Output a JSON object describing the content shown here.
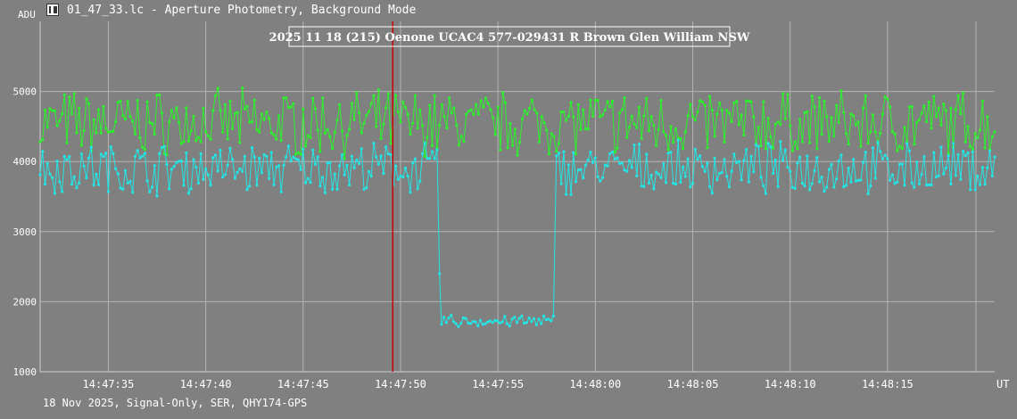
{
  "window": {
    "title": "01_47_33.lc - Aperture Photometry, Background Mode",
    "footer": "18 Nov 2025, Signal-Only, SER, QHY174-GPS"
  },
  "colors": {
    "background": "#808080",
    "grid": "#b4b4b4",
    "target_series": "#22e6e6",
    "comparison_series": "#2bf22b",
    "marker": "#cc0000"
  },
  "chart_data": {
    "type": "line",
    "title": "2025 11 18  (215) Oenone UCAC4 577-029431 R Brown Glen William NSW",
    "ylabel": "ADU",
    "xlabel": "UT",
    "ylim": [
      1000,
      6000
    ],
    "xlim_seconds": [
      31.5,
      80.5
    ],
    "y_ticks": [
      1000,
      2000,
      3000,
      4000,
      5000
    ],
    "x_ticks": [
      {
        "label": "14:47:35",
        "t": 35
      },
      {
        "label": "14:47:40",
        "t": 40
      },
      {
        "label": "14:47:45",
        "t": 45
      },
      {
        "label": "14:47:50",
        "t": 50
      },
      {
        "label": "14:47:55",
        "t": 55
      },
      {
        "label": "14:48:00",
        "t": 60
      },
      {
        "label": "14:48:05",
        "t": 65
      },
      {
        "label": "14:48:10",
        "t": 70
      },
      {
        "label": "14:48:15",
        "t": 75
      }
    ],
    "grid": true,
    "marker_time": "14:47:49.6",
    "marker_t": 49.6,
    "sample_interval_s": 0.125,
    "series": [
      {
        "role": "target",
        "color": "#22e6e6",
        "segments": [
          {
            "t0": 31.5,
            "t1": 51.95,
            "mean": 3900,
            "amp": 300
          },
          {
            "t0": 52.0,
            "t1": 52.05,
            "mean": 2400,
            "amp": 0
          },
          {
            "t0": 52.1,
            "t1": 57.9,
            "mean": 1720,
            "amp": 80
          },
          {
            "t0": 58.0,
            "t1": 80.5,
            "mean": 3900,
            "amp": 300
          }
        ]
      },
      {
        "role": "comparison",
        "color": "#2bf22b",
        "segments": [
          {
            "t0": 31.5,
            "t1": 80.5,
            "mean": 4550,
            "amp": 380
          }
        ]
      }
    ]
  }
}
